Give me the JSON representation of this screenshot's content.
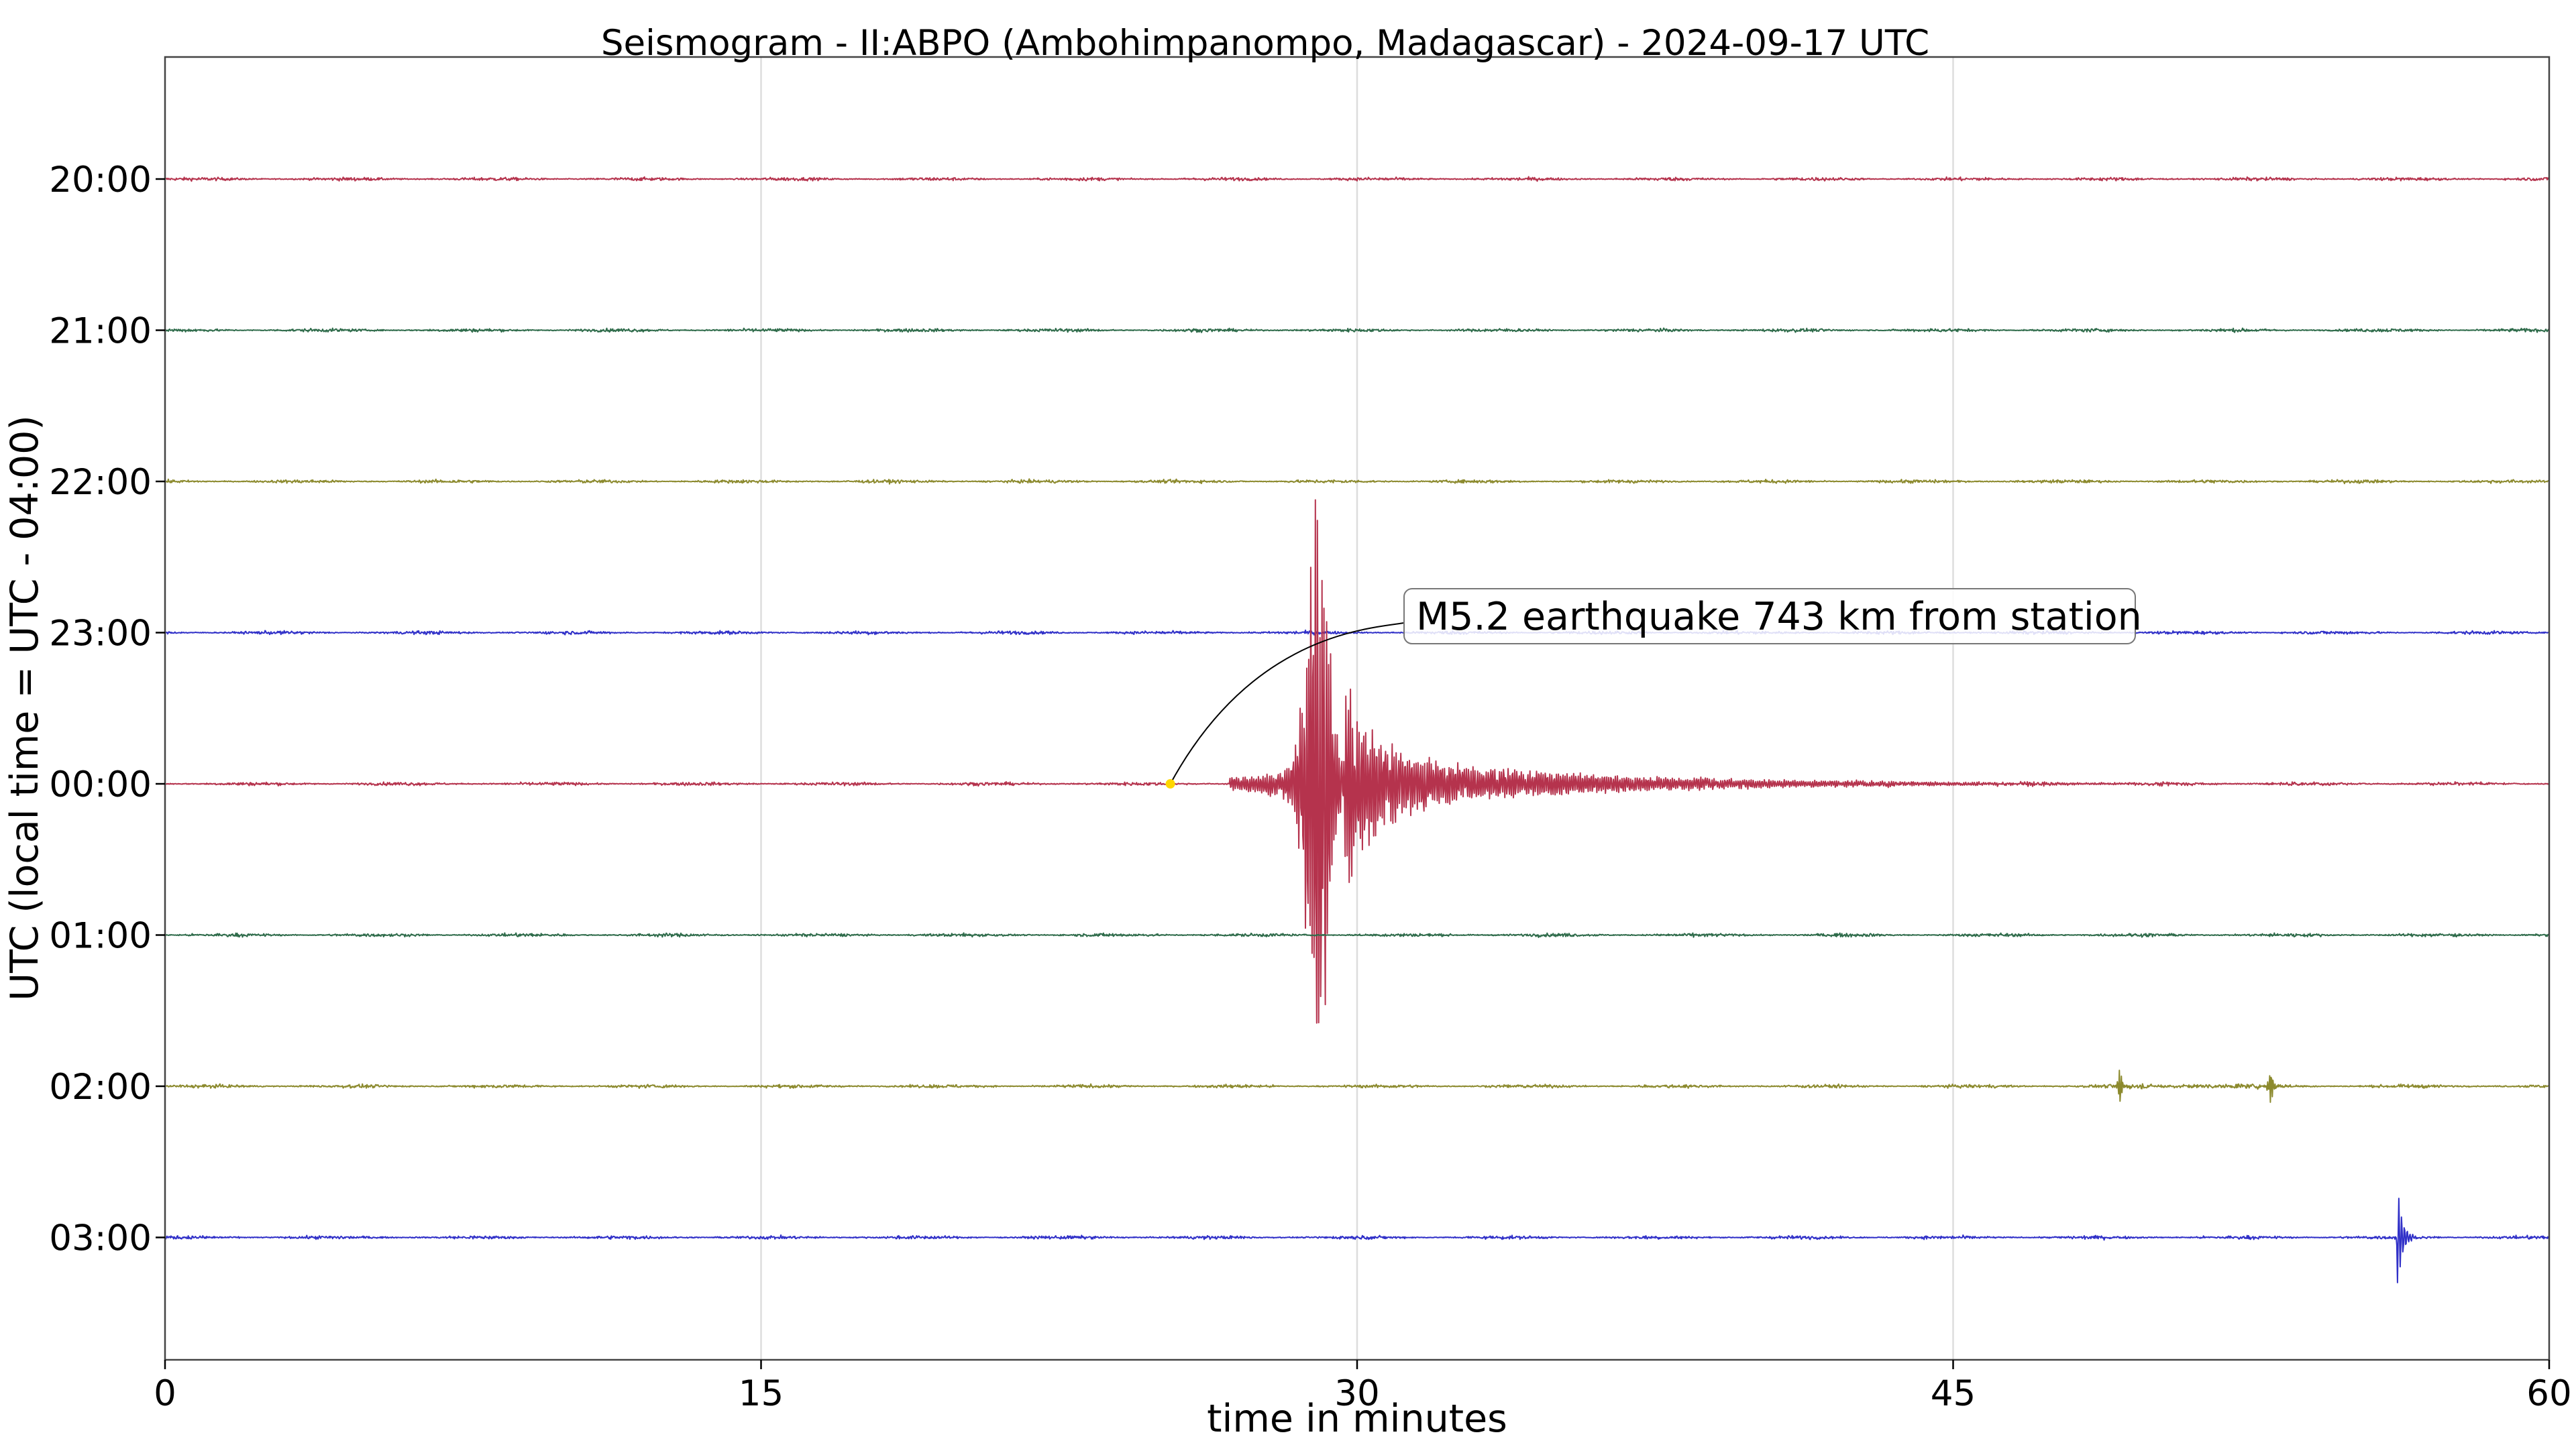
{
  "chart_data": {
    "type": "line",
    "title": "Seismogram - II:ABPO (Ambohimpanompo, Madagascar) - 2024-09-17 UTC",
    "xlabel": "time in minutes",
    "ylabel": "UTC (local time = UTC - 04:00)",
    "xlim": [
      0,
      60
    ],
    "x_ticks": [
      0,
      15,
      30,
      45,
      60
    ],
    "x_tick_labels": [
      "0",
      "15",
      "30",
      "45",
      "60"
    ],
    "grid_x": true,
    "grid_y": false,
    "legend": "none",
    "rows": [
      {
        "label": "20:00",
        "color": "#b5334d",
        "noise": 0.35,
        "events": []
      },
      {
        "label": "21:00",
        "color": "#2e6b4a",
        "noise": 0.35,
        "events": []
      },
      {
        "label": "22:00",
        "color": "#8c8a2e",
        "noise": 0.35,
        "events": []
      },
      {
        "label": "23:00",
        "color": "#3030c8",
        "noise": 0.35,
        "events": []
      },
      {
        "label": "00:00",
        "color": "#b5334d",
        "noise": 0.35,
        "events": [
          {
            "kind": "earthquake",
            "start_min": 26.8,
            "peak_min": 29.0,
            "amplitude_rows": 4.0,
            "decay_min": 5.0
          }
        ]
      },
      {
        "label": "01:00",
        "color": "#2e6b4a",
        "noise": 0.35,
        "events": []
      },
      {
        "label": "02:00",
        "color": "#8c8a2e",
        "noise": 0.35,
        "events": [
          {
            "kind": "spike",
            "at_min": 49.2,
            "amplitude_rows": 0.25
          },
          {
            "kind": "spike",
            "at_min": 53.0,
            "amplitude_rows": 0.3
          }
        ]
      },
      {
        "label": "03:00",
        "color": "#3030c8",
        "noise": 0.35,
        "events": [
          {
            "kind": "burst",
            "at_min": 56.2,
            "amplitude_rows": 0.3
          }
        ]
      }
    ],
    "annotations": [
      {
        "text": "M5.2 earthquake 743 km from station",
        "row": "00:00",
        "at_min": 25.3,
        "marker_color": "#ffd700"
      }
    ]
  }
}
